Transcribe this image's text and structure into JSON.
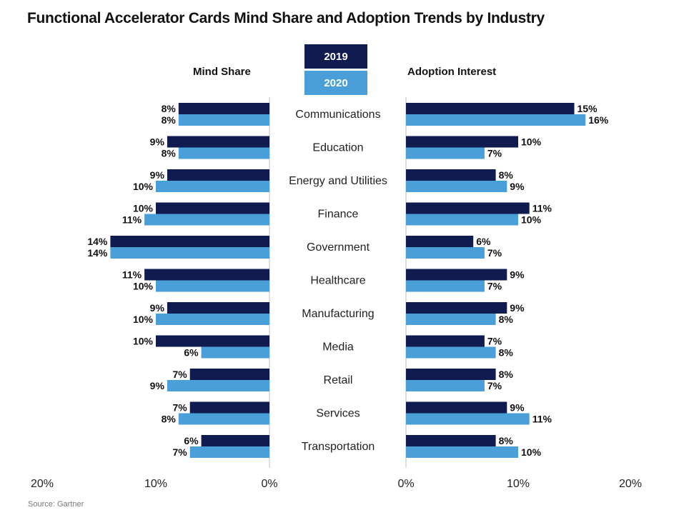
{
  "chart_data": {
    "type": "bar",
    "title": "Functional Accelerator Cards Mind Share and Adoption Trends by Industry",
    "source": "Source: Gartner",
    "categories": [
      "Communications",
      "Education",
      "Energy and Utilities",
      "Finance",
      "Government",
      "Healthcare",
      "Manufacturing",
      "Media",
      "Retail",
      "Services",
      "Transportation"
    ],
    "legend": [
      {
        "name": "2019",
        "color": "#101b4f"
      },
      {
        "name": "2020",
        "color": "#4a9fd9"
      }
    ],
    "panels": [
      {
        "name": "Mind Share",
        "direction": "left",
        "xlim": [
          0,
          20
        ],
        "ticks": [
          "0%",
          "10%",
          "20%"
        ],
        "series": [
          {
            "name": "2019",
            "values": [
              8,
              9,
              9,
              10,
              14,
              11,
              9,
              10,
              7,
              7,
              6
            ],
            "labels": [
              "8%",
              "9%",
              "9%",
              "10%",
              "14%",
              "11%",
              "9%",
              "10%",
              "7%",
              "7%",
              "6%"
            ]
          },
          {
            "name": "2020",
            "values": [
              8,
              8,
              10,
              11,
              14,
              10,
              10,
              6,
              9,
              8,
              7
            ],
            "labels": [
              "8%",
              "8%",
              "10%",
              "11%",
              "14%",
              "10%",
              "10%",
              "6%",
              "9%",
              "8%",
              "7%"
            ]
          }
        ]
      },
      {
        "name": "Adoption Interest",
        "direction": "right",
        "xlim": [
          0,
          20
        ],
        "ticks": [
          "0%",
          "10%",
          "20%"
        ],
        "series": [
          {
            "name": "2019",
            "values": [
              15,
              10,
              8,
              11,
              6,
              9,
              9,
              7,
              8,
              9,
              8
            ],
            "labels": [
              "15%",
              "10%",
              "8%",
              "11%",
              "6%",
              "9%",
              "9%",
              "7%",
              "8%",
              "9%",
              "8%"
            ]
          },
          {
            "name": "2020",
            "values": [
              16,
              7,
              9,
              10,
              7,
              7,
              8,
              8,
              7,
              11,
              10
            ],
            "labels": [
              "16%",
              "7%",
              "9%",
              "10%",
              "7%",
              "7%",
              "8%",
              "8%",
              "7%",
              "11%",
              "10%"
            ]
          }
        ]
      }
    ]
  }
}
